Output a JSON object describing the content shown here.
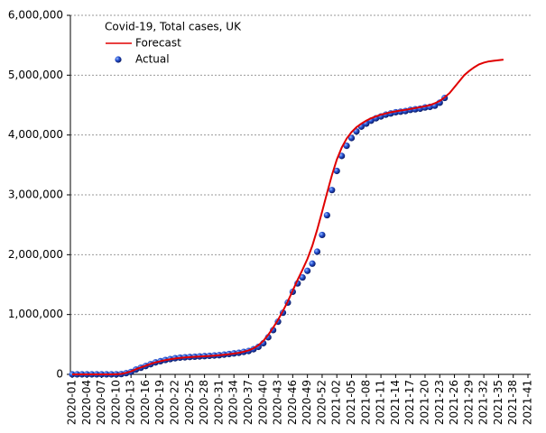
{
  "chart_data": {
    "type": "line",
    "title": "Covid-19, Total cases, UK",
    "categories": [
      "2020-01",
      null,
      null,
      "2020-04",
      null,
      null,
      "2020-07",
      null,
      null,
      "2020-10",
      null,
      null,
      "2020-13",
      null,
      null,
      "2020-16",
      null,
      null,
      "2020-19",
      null,
      null,
      "2020-22",
      null,
      null,
      "2020-25",
      null,
      null,
      "2020-28",
      null,
      null,
      "2020-31",
      null,
      null,
      "2020-34",
      null,
      null,
      "2020-37",
      null,
      null,
      "2020-40",
      null,
      null,
      "2020-43",
      null,
      null,
      "2020-46",
      null,
      null,
      "2020-49",
      null,
      null,
      "2020-52",
      null,
      null,
      "2021-02",
      null,
      null,
      "2021-05",
      null,
      null,
      "2021-08",
      null,
      null,
      "2021-11",
      null,
      null,
      "2021-14",
      null,
      null,
      "2021-17",
      null,
      null,
      "2021-20",
      null,
      null,
      "2021-23",
      null,
      null,
      "2021-26",
      null,
      null,
      "2021-29",
      null,
      null,
      "2021-32",
      null,
      null,
      "2021-35",
      null,
      null,
      "2021-38",
      null,
      null,
      "2021-41"
    ],
    "series": [
      {
        "name": "Forecast",
        "color": "#e00000",
        "style": "line",
        "values": [
          0,
          0,
          0,
          0,
          0,
          0,
          0,
          0,
          500,
          2000,
          8000,
          25000,
          50000,
          85000,
          115000,
          145000,
          175000,
          200000,
          220000,
          238000,
          252000,
          265000,
          275000,
          282000,
          288000,
          293000,
          298000,
          303000,
          308000,
          313000,
          320000,
          328000,
          337000,
          348000,
          360000,
          378000,
          400000,
          435000,
          485000,
          560000,
          660000,
          780000,
          910000,
          1060000,
          1220000,
          1400000,
          1580000,
          1750000,
          1930000,
          2150000,
          2420000,
          2720000,
          3030000,
          3330000,
          3590000,
          3790000,
          3940000,
          4050000,
          4130000,
          4190000,
          4240000,
          4280000,
          4310000,
          4340000,
          4360000,
          4380000,
          4395000,
          4410000,
          4420000,
          4435000,
          4450000,
          4465000,
          4480000,
          4500000,
          4530000,
          4570000,
          4630000,
          4700000,
          4800000,
          4900000,
          5000000,
          5070000,
          5130000,
          5180000,
          5210000,
          5230000,
          5240000,
          5250000,
          5260000,
          null,
          null,
          null,
          null,
          null
        ]
      },
      {
        "name": "Actual",
        "color": "#1f3fbf",
        "style": "marker",
        "values": [
          0,
          0,
          0,
          0,
          0,
          0,
          0,
          0,
          100,
          1000,
          5000,
          20000,
          40000,
          80000,
          110000,
          140000,
          170000,
          200000,
          220000,
          240000,
          255000,
          270000,
          280000,
          285000,
          290000,
          295000,
          300000,
          305000,
          310000,
          315000,
          320000,
          330000,
          340000,
          350000,
          360000,
          375000,
          390000,
          420000,
          460000,
          520000,
          620000,
          740000,
          880000,
          1030000,
          1200000,
          1380000,
          1520000,
          1620000,
          1730000,
          1850000,
          2050000,
          2330000,
          2660000,
          3080000,
          3400000,
          3650000,
          3820000,
          3950000,
          4060000,
          4140000,
          4190000,
          4240000,
          4280000,
          4310000,
          4340000,
          4360000,
          4380000,
          4390000,
          4400000,
          4420000,
          4430000,
          4440000,
          4460000,
          4470000,
          4490000,
          4540000,
          4620000,
          null,
          null,
          null,
          null,
          null,
          null,
          null,
          null,
          null,
          null,
          null,
          null,
          null,
          null,
          null,
          null,
          null
        ]
      }
    ],
    "ylim": [
      0,
      6000000
    ],
    "yticks": [
      0,
      {
        "value": 1000000,
        "label": "1,000,000"
      },
      {
        "value": 2000000,
        "label": "2,000,000"
      },
      {
        "value": 3000000,
        "label": "3,000,000"
      },
      {
        "value": 4000000,
        "label": "4,000,000"
      },
      {
        "value": 5000000,
        "label": "5,000,000"
      },
      {
        "value": 6000000,
        "label": "6,000,000"
      }
    ],
    "grid": true,
    "legend": "upper-left"
  }
}
